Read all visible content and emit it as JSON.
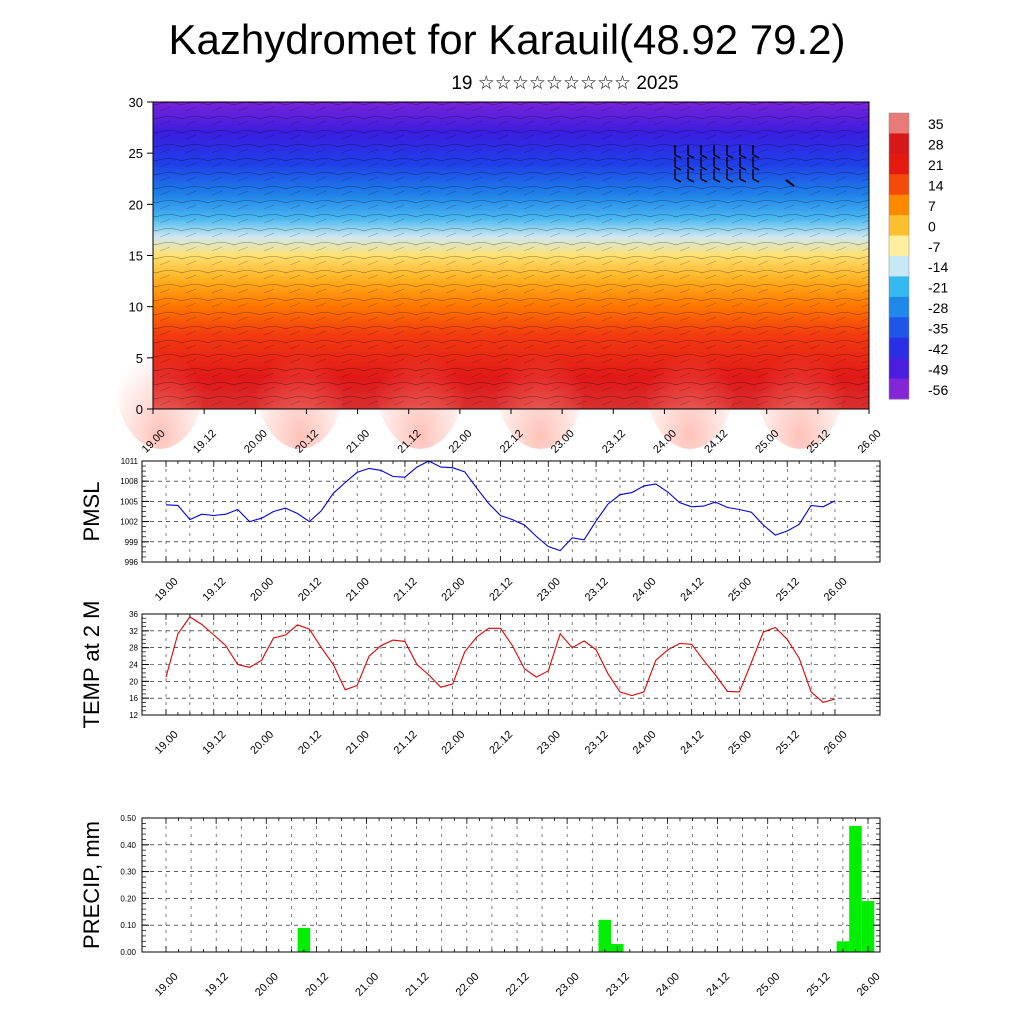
{
  "title": "Kazhydromet for Karauil(48.92 79.2)",
  "subtitle": "19 ☆☆☆☆☆☆☆☆☆ 2025",
  "time_ticks": [
    "19.00",
    "19.12",
    "20.00",
    "20.12",
    "21.00",
    "21.12",
    "22.00",
    "22.12",
    "23.00",
    "23.12",
    "24.00",
    "24.12",
    "25.00",
    "25.12",
    "26.00"
  ],
  "colors": {
    "pmsl_line": "#0000dd",
    "temp_line": "#e00000",
    "precip_bar": "#00ee00",
    "frame": "#000000"
  },
  "chart_data": [
    {
      "type": "heatmap",
      "name": "vertical-section",
      "x": [
        "19.00",
        "19.12",
        "20.00",
        "20.12",
        "21.00",
        "21.12",
        "22.00",
        "22.12",
        "23.00",
        "23.12",
        "24.00",
        "24.12",
        "25.00",
        "25.12",
        "26.00"
      ],
      "ylim": [
        0,
        30
      ],
      "yticks": [
        0,
        5,
        10,
        15,
        20,
        25,
        30
      ],
      "colorbar_labels": [
        "35",
        "28",
        "21",
        "14",
        "7",
        "0",
        "-7",
        "-14",
        "-21",
        "-28",
        "-35",
        "-42",
        "-49",
        "-56"
      ],
      "colorbar_range": [
        -63,
        42
      ],
      "palette": [
        "#7a1fd6",
        "#3a1ee0",
        "#1f3ee8",
        "#1f7ee8",
        "#22b6f0",
        "#a8e0f5",
        "#fff0a0",
        "#ffcc33",
        "#ff8a00",
        "#ff4a00",
        "#e41a10",
        "#c81818",
        "#e86a6a"
      ]
    },
    {
      "type": "line",
      "name": "pmsl",
      "ylabel": "PMSL",
      "ylim": [
        996,
        1011
      ],
      "yticks": [
        996,
        999,
        1002,
        1005,
        1008,
        1011
      ],
      "x": [
        0,
        3,
        6,
        9,
        12,
        15,
        18,
        21,
        24,
        27,
        30,
        33,
        36,
        39,
        42,
        45,
        48,
        51,
        54,
        57,
        60,
        63,
        66,
        69,
        72,
        75,
        78,
        81,
        84,
        87,
        90,
        93,
        96,
        99,
        102,
        105,
        108,
        111,
        114,
        117,
        120,
        123,
        126,
        129,
        132,
        135,
        138,
        141,
        144,
        147,
        150,
        153,
        156,
        159,
        162,
        165,
        168
      ],
      "series": [
        {
          "values": [
            1004.5,
            1004.4,
            1002.3,
            1003.1,
            1002.9,
            1003.1,
            1003.8,
            1002.0,
            1002.5,
            1003.5,
            1004.0,
            1003.2,
            1002.0,
            1003.6,
            1006.2,
            1007.8,
            1009.3,
            1009.9,
            1009.6,
            1008.7,
            1008.6,
            1010.1,
            1011.0,
            1010.1,
            1010.0,
            1009.4,
            1007.0,
            1004.7,
            1002.9,
            1002.3,
            1001.5,
            999.8,
            998.3,
            997.7,
            999.6,
            999.3,
            1002.1,
            1004.6,
            1006.0,
            1006.3,
            1007.3,
            1007.6,
            1006.4,
            1004.8,
            1004.2,
            1004.3,
            1004.9,
            1004.1,
            1003.8,
            1003.4,
            1001.5,
            1000.0,
            1000.6,
            1001.6,
            1004.4,
            1004.2,
            1005.1
          ]
        }
      ]
    },
    {
      "type": "line",
      "name": "temp-2m",
      "ylabel": "TEMP at 2 M",
      "ylim": [
        12,
        36
      ],
      "yticks": [
        12,
        16,
        20,
        24,
        28,
        32,
        36
      ],
      "x": [
        0,
        3,
        6,
        9,
        12,
        15,
        18,
        21,
        24,
        27,
        30,
        33,
        36,
        39,
        42,
        45,
        48,
        51,
        54,
        57,
        60,
        63,
        66,
        69,
        72,
        75,
        78,
        81,
        84,
        87,
        90,
        93,
        96,
        99,
        102,
        105,
        108,
        111,
        114,
        117,
        120,
        123,
        126,
        129,
        132,
        135,
        138,
        141,
        144,
        147,
        150,
        153,
        156,
        159,
        162,
        165,
        168
      ],
      "series": [
        {
          "values": [
            21.0,
            31.3,
            35.3,
            33.5,
            31.0,
            28.5,
            24.0,
            23.3,
            25.0,
            30.3,
            31.0,
            33.4,
            32.4,
            28.0,
            24.0,
            18.0,
            19.0,
            26.0,
            28.5,
            29.8,
            29.5,
            24.0,
            21.5,
            18.6,
            19.4,
            27.0,
            30.5,
            32.6,
            32.6,
            28.5,
            23.0,
            21.0,
            22.5,
            31.3,
            28.0,
            29.6,
            27.5,
            21.8,
            17.5,
            16.6,
            17.5,
            25.0,
            27.5,
            29.0,
            28.8,
            25.0,
            21.5,
            17.6,
            17.5,
            24.5,
            31.7,
            32.8,
            30.0,
            25.5,
            17.5,
            15.0,
            15.8
          ]
        }
      ]
    },
    {
      "type": "bar",
      "name": "precip",
      "ylabel": "PRECIP, mm",
      "ylim": [
        0,
        0.5
      ],
      "yticks": [
        "0.00",
        "0.10",
        "0.20",
        "0.30",
        "0.40",
        "0.50"
      ],
      "x": [
        33,
        105,
        108,
        162,
        165,
        168
      ],
      "values": [
        0.09,
        0.12,
        0.03,
        0.04,
        0.47,
        0.19
      ]
    }
  ]
}
